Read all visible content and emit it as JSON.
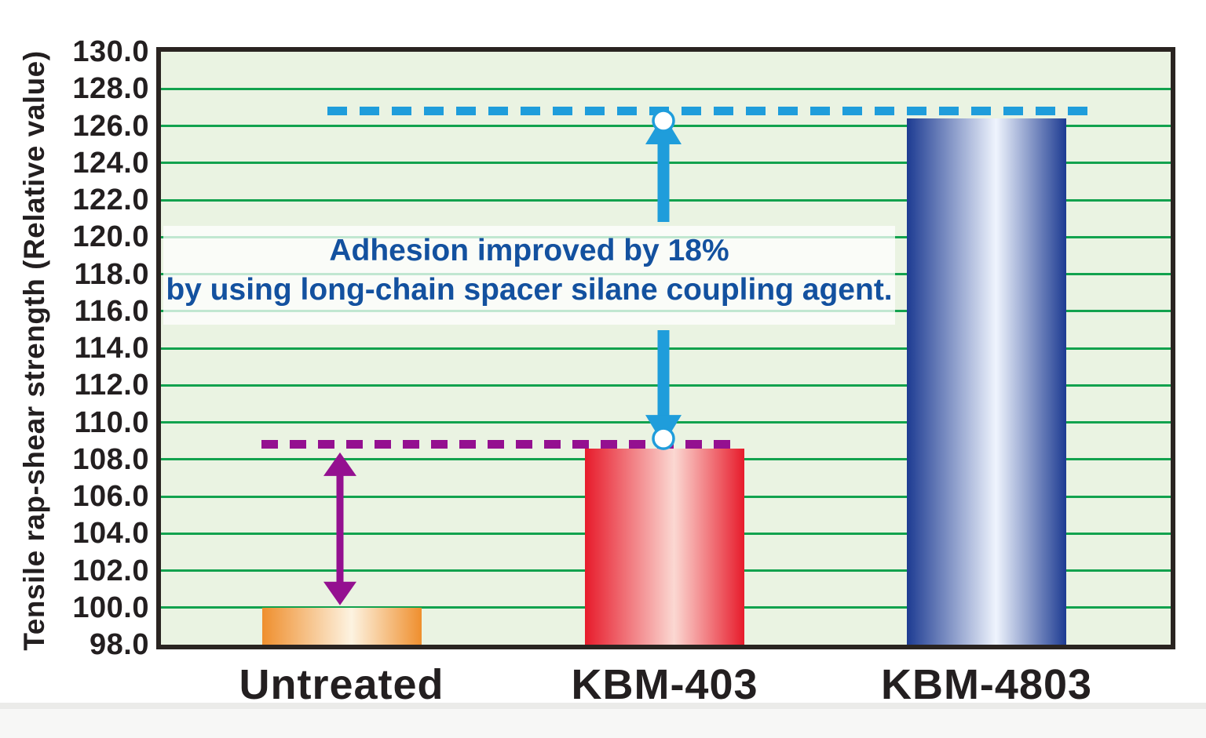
{
  "chart_data": {
    "type": "bar",
    "title": "",
    "categories": [
      "Untreated",
      "KBM-403",
      "KBM-4803"
    ],
    "values": [
      100.0,
      108.6,
      126.4
    ],
    "xlabel": "",
    "ylabel": "Tensile rap-shear strength (Relative value)",
    "ylim": [
      98.0,
      130.0
    ],
    "ytick_step": 2.0,
    "ytick_labels": [
      "98.0",
      "100.0",
      "102.0",
      "104.0",
      "106.0",
      "108.0",
      "110.0",
      "112.0",
      "114.0",
      "116.0",
      "118.0",
      "120.0",
      "122.0",
      "124.0",
      "126.0",
      "128.0",
      "130.0"
    ],
    "grid": "horizontal",
    "legend": "none",
    "plot_bg_color": "#eaf3e2",
    "grid_color": "#12a24e",
    "axis_border_color": "#2a2421",
    "bar_styles": [
      {
        "category": "Untreated",
        "edge_color": "#ef8f2e",
        "highlight_color": "#fdf3e1"
      },
      {
        "category": "KBM-403",
        "edge_color": "#e71b2b",
        "highlight_color": "#fbd8d2"
      },
      {
        "category": "KBM-4803",
        "edge_color": "#1d3b92",
        "highlight_color": "#eff4fd"
      }
    ],
    "reference_lines": [
      {
        "value": 108.8,
        "color": "#941090",
        "style": "dashed",
        "marks": "KBM-403 level"
      },
      {
        "value": 126.8,
        "color": "#1f9ddb",
        "style": "dashed",
        "marks": "KBM-4803 level"
      }
    ],
    "annotation": {
      "line1": "Adhesion improved by 18%",
      "line2": "by using long-chain spacer silane coupling agent.",
      "text_color": "#13519f"
    },
    "arrows": [
      {
        "type": "double-headed-vertical",
        "color": "#941090",
        "from_value": 100.0,
        "to_value": 108.8,
        "at_category": "Untreated"
      },
      {
        "type": "up",
        "color": "#1f9ddb",
        "points_to_value": 126.4,
        "at_category": "KBM-403",
        "tip_marker": "white-circle"
      },
      {
        "type": "down",
        "color": "#1f9ddb",
        "points_to_value": 109.0,
        "at_category": "KBM-403",
        "tip_marker": "white-circle"
      }
    ]
  }
}
